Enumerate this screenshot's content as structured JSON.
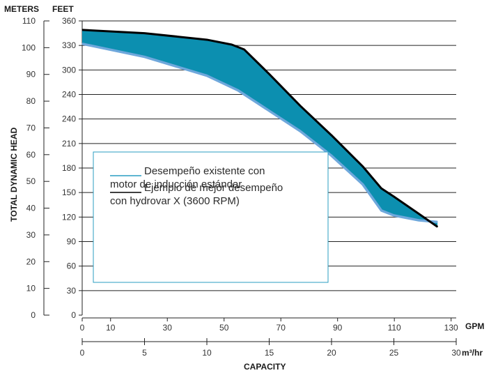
{
  "chart_data": {
    "type": "line",
    "title": "",
    "left_axes": {
      "meters_label": "METERS",
      "feet_label": "FEET",
      "meters_ticks": [
        "110",
        "100",
        "90",
        "80",
        "70",
        "60",
        "50",
        "40",
        "30",
        "20",
        "10",
        "0"
      ],
      "feet_ticks": [
        "360",
        "330",
        "300",
        "240",
        "240",
        "210",
        "180",
        "150",
        "120",
        "90",
        "60",
        "30",
        "0"
      ]
    },
    "ylabel": "TOTAL DYNAMIC HEAD",
    "xlabel": "CAPACITY",
    "gpm_axis": {
      "unit": "GPM",
      "ticks": [
        "0",
        "10",
        "30",
        "50",
        "70",
        "90",
        "110",
        "130"
      ]
    },
    "m3hr_axis": {
      "unit": "m³/hr",
      "ticks": [
        "0",
        "5",
        "10",
        "15",
        "20",
        "25",
        "30"
      ]
    },
    "m3hr_range": [
      0,
      30
    ],
    "feet_range": [
      0,
      360
    ],
    "grid": true,
    "series": [
      {
        "name": "Desempeño existente con motor de inducción estándar",
        "color": "#6fa8dc",
        "x_m3hr": [
          0,
          5,
          10,
          12.5,
          15,
          17.5,
          20,
          22.5,
          24,
          25,
          27,
          28.5
        ],
        "y_feet": [
          332,
          316,
          293,
          275,
          250,
          225,
          195,
          160,
          128,
          122,
          116,
          114
        ]
      },
      {
        "name": "Ejemplo de mejor desempeño con hydrovar X (3600 RPM)",
        "color": "#000000",
        "x_m3hr": [
          0,
          5,
          10,
          12,
          13,
          15,
          17.5,
          20,
          22.5,
          24,
          25,
          27,
          28.5
        ],
        "y_feet": [
          349,
          345,
          337,
          331,
          325,
          295,
          256,
          220,
          182,
          155,
          145,
          124,
          108
        ]
      }
    ],
    "fill_color": "#0c8fb0",
    "legend": {
      "entry1_line1": "Desempeño existente con",
      "entry1_line2": "motor de inducción estándar",
      "entry2_line1": "Ejemplo de mejor desempeño",
      "entry2_line2": "con hydrovar X (3600 RPM)"
    }
  }
}
